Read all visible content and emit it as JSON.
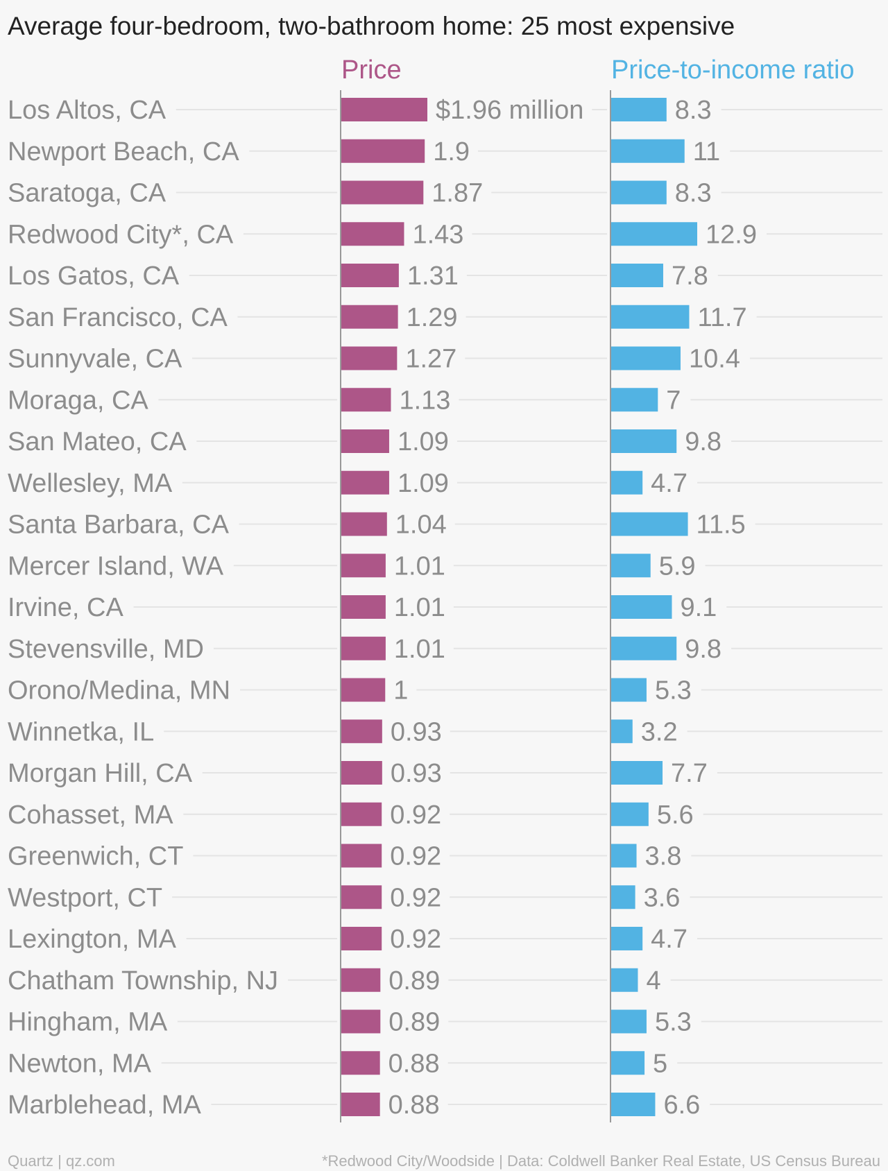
{
  "title": "Average four-bedroom, two-bathroom home: 25 most expensive",
  "footer": {
    "left": "Quartz | qz.com",
    "right": "*Redwood City/Woodside | Data: Coldwell Banker Real Estate, US Census Bureau"
  },
  "colors": {
    "price": "#ad5688",
    "ratio": "#52b3e3",
    "title": "#222222",
    "label": "#8c8c8c",
    "grid": "#e4e4e4",
    "axis": "#999999"
  },
  "chart_data": {
    "type": "bar",
    "orientation": "horizontal",
    "categories": [
      "Los Altos, CA",
      "Newport Beach, CA",
      "Saratoga, CA",
      "Redwood City*, CA",
      "Los Gatos, CA",
      "San Francisco, CA",
      "Sunnyvale, CA",
      "Moraga, CA",
      "San Mateo, CA",
      "Wellesley, MA",
      "Santa Barbara, CA",
      "Mercer Island, WA",
      "Irvine, CA",
      "Stevensville, MD",
      "Orono/Medina, MN",
      "Winnetka, IL",
      "Morgan Hill, CA",
      "Cohasset, MA",
      "Greenwich, CT",
      "Westport, CT",
      "Lexington, MA",
      "Chatham Township, NJ",
      "Hingham, MA",
      "Newton, MA",
      "Marblehead, MA"
    ],
    "series": [
      {
        "name": "Price",
        "values": [
          1.96,
          1.9,
          1.87,
          1.43,
          1.31,
          1.29,
          1.27,
          1.13,
          1.09,
          1.09,
          1.04,
          1.01,
          1.01,
          1.01,
          1,
          0.93,
          0.93,
          0.92,
          0.92,
          0.92,
          0.92,
          0.89,
          0.89,
          0.88,
          0.88
        ],
        "labels": [
          "$1.96 million",
          "1.9",
          "1.87",
          "1.43",
          "1.31",
          "1.29",
          "1.27",
          "1.13",
          "1.09",
          "1.09",
          "1.04",
          "1.01",
          "1.01",
          "1.01",
          "1",
          "0.93",
          "0.93",
          "0.92",
          "0.92",
          "0.92",
          "0.92",
          "0.89",
          "0.89",
          "0.88",
          "0.88"
        ],
        "xlim": [
          0,
          1.96
        ]
      },
      {
        "name": "Price-to-income ratio",
        "values": [
          8.3,
          11,
          8.3,
          12.9,
          7.8,
          11.7,
          10.4,
          7,
          9.8,
          4.7,
          11.5,
          5.9,
          9.1,
          9.8,
          5.3,
          3.2,
          7.7,
          5.6,
          3.8,
          3.6,
          4.7,
          4,
          5.3,
          5,
          6.6
        ],
        "labels": [
          "8.3",
          "11",
          "8.3",
          "12.9",
          "7.8",
          "11.7",
          "10.4",
          "7",
          "9.8",
          "4.7",
          "11.5",
          "5.9",
          "9.1",
          "9.8",
          "5.3",
          "3.2",
          "7.7",
          "5.6",
          "3.8",
          "3.6",
          "4.7",
          "4",
          "5.3",
          "5",
          "6.6"
        ],
        "xlim": [
          0,
          12.9
        ]
      }
    ],
    "grid": true,
    "legend": "none"
  }
}
